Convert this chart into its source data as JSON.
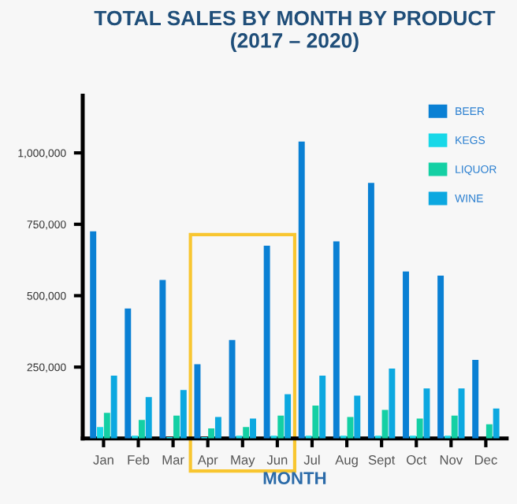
{
  "chart_data": {
    "type": "bar",
    "title": "TOTAL SALES BY MONTH BY PRODUCT\n(2017 – 2020)",
    "xlabel": "MONTH",
    "categories": [
      "Jan",
      "Feb",
      "Mar",
      "Apr",
      "May",
      "Jun",
      "Jul",
      "Aug",
      "Sept",
      "Oct",
      "Nov",
      "Dec"
    ],
    "series": [
      {
        "name": "BEER",
        "color": "#0a80d4",
        "values": [
          725000,
          455000,
          555000,
          260000,
          345000,
          675000,
          1040000,
          690000,
          895000,
          585000,
          570000,
          275000
        ]
      },
      {
        "name": "KEGS",
        "color": "#18d8e8",
        "values": [
          40000,
          10000,
          5000,
          5000,
          10000,
          10000,
          10000,
          10000,
          10000,
          10000,
          10000,
          null
        ]
      },
      {
        "name": "LIQUOR",
        "color": "#14d0a4",
        "values": [
          90000,
          65000,
          80000,
          35000,
          40000,
          80000,
          115000,
          75000,
          100000,
          70000,
          80000,
          50000
        ]
      },
      {
        "name": "WINE",
        "color": "#0ca8e0",
        "values": [
          220000,
          145000,
          170000,
          75000,
          70000,
          155000,
          220000,
          150000,
          245000,
          175000,
          175000,
          105000
        ]
      }
    ],
    "ylim": [
      0,
      1200000
    ],
    "yticks": [
      {
        "value": 250000,
        "label": "250,000"
      },
      {
        "value": 500000,
        "label": "500,000"
      },
      {
        "value": 750000,
        "label": "750,000"
      },
      {
        "value": 1000000,
        "label": "1,000,000"
      }
    ],
    "legend": "top right",
    "grid": false
  }
}
